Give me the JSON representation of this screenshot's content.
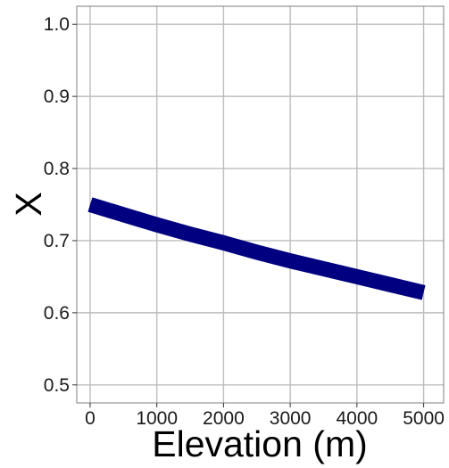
{
  "chart_data": {
    "type": "line",
    "title": "",
    "xlabel": "Elevation (m)",
    "ylabel": "X",
    "xlim": [
      -200,
      5300
    ],
    "ylim": [
      0.475,
      1.025
    ],
    "x_ticks": [
      0,
      1000,
      2000,
      3000,
      4000,
      5000
    ],
    "y_ticks": [
      0.5,
      0.6,
      0.7,
      0.8,
      0.9,
      1.0
    ],
    "x_tick_labels": [
      "0",
      "1000",
      "2000",
      "3000",
      "4000",
      "5000"
    ],
    "y_tick_labels": [
      "0.5",
      "0.6",
      "0.7",
      "0.8",
      "0.9",
      "1.0"
    ],
    "grid": true,
    "legend": "none",
    "series": [
      {
        "color": "#000080",
        "x": [
          0,
          500,
          1000,
          1500,
          2000,
          2500,
          3000,
          3500,
          4000,
          4500,
          5000
        ],
        "y": [
          0.75,
          0.736,
          0.722,
          0.709,
          0.697,
          0.684,
          0.672,
          0.661,
          0.65,
          0.639,
          0.628
        ]
      }
    ],
    "colors": {
      "grid": "#bdbdbd",
      "panel_border": "#7f7f7f",
      "tick": "#333333",
      "line": "#000080"
    }
  }
}
